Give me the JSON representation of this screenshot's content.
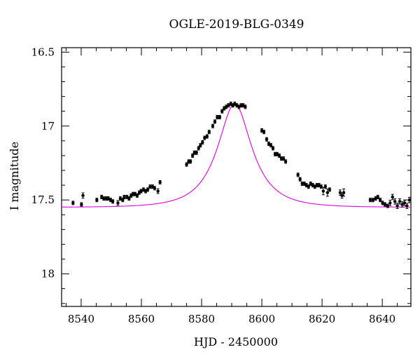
{
  "chart_data": {
    "type": "scatter",
    "title": "OGLE-2019-BLG-0349",
    "xlabel": "HJD - 2450000",
    "ylabel": "I magnitude",
    "xlim": [
      8533.5,
      8649.5
    ],
    "ylim": [
      18.22,
      16.47
    ],
    "y_inverted": true,
    "x_ticks": [
      8540,
      8560,
      8580,
      8600,
      8620,
      8640
    ],
    "x_tick_labels": [
      "8540",
      "8560",
      "8580",
      "8600",
      "8620",
      "8640"
    ],
    "y_ticks": [
      16.5,
      17,
      17.5,
      18
    ],
    "y_tick_labels": [
      "16.5",
      "17",
      "17.5",
      "18"
    ],
    "grid": false,
    "colors": {
      "points": "#000000",
      "model": "#e000e0"
    },
    "model": {
      "t0": 8591.0,
      "peak_mag": 16.85,
      "baseline_mag": 17.55,
      "tE": 11.5,
      "u0": 0.52
    },
    "series": [
      {
        "kind": "observations",
        "x": [
          8537.3,
          8540.1,
          8540.6,
          8545.2,
          8546.8,
          8547.5,
          8548.3,
          8549.0,
          8549.8,
          8550.5,
          8552.2,
          8553.0,
          8553.8,
          8554.3,
          8555.2,
          8555.9,
          8556.6,
          8557.2,
          8557.9,
          8558.6,
          8559.3,
          8559.9,
          8560.7,
          8561.4,
          8562.1,
          8562.9,
          8563.7,
          8564.4,
          8565.5,
          8566.2,
          8575.0,
          8575.7,
          8576.3,
          8577.0,
          8577.6,
          8578.3,
          8579.0,
          8579.6,
          8580.3,
          8581.0,
          8581.8,
          8582.5,
          8583.7,
          8584.4,
          8585.2,
          8586.0,
          8586.8,
          8587.5,
          8588.2,
          8588.9,
          8589.7,
          8590.4,
          8591.0,
          8591.7,
          8592.4,
          8593.1,
          8593.8,
          8594.5,
          8600.0,
          8600.7,
          8601.6,
          8602.3,
          8603.0,
          8603.7,
          8604.4,
          8605.1,
          8605.8,
          8606.5,
          8607.2,
          8607.9,
          8612.0,
          8612.7,
          8613.4,
          8614.1,
          8614.8,
          8615.5,
          8616.2,
          8616.9,
          8617.6,
          8618.3,
          8619.0,
          8619.7,
          8620.4,
          8621.1,
          8621.8,
          8622.5,
          8626.0,
          8626.6,
          8627.2,
          8636.0,
          8636.9,
          8637.8,
          8638.5,
          8639.3,
          8640.1,
          8640.9,
          8641.8,
          8642.6,
          8643.4,
          8644.2,
          8645.0,
          8645.8,
          8646.6,
          8647.4,
          8648.2,
          8649.0
        ],
        "y": [
          17.52,
          17.53,
          17.47,
          17.5,
          17.48,
          17.49,
          17.49,
          17.49,
          17.5,
          17.51,
          17.52,
          17.49,
          17.5,
          17.48,
          17.48,
          17.49,
          17.47,
          17.46,
          17.46,
          17.47,
          17.45,
          17.44,
          17.43,
          17.44,
          17.43,
          17.41,
          17.41,
          17.42,
          17.44,
          17.38,
          17.26,
          17.24,
          17.24,
          17.2,
          17.18,
          17.18,
          17.15,
          17.13,
          17.11,
          17.08,
          17.07,
          17.04,
          17.0,
          16.97,
          16.94,
          16.94,
          16.9,
          16.88,
          16.87,
          16.86,
          16.85,
          16.86,
          16.85,
          16.86,
          16.87,
          16.86,
          16.86,
          16.87,
          17.03,
          17.04,
          17.09,
          17.12,
          17.13,
          17.15,
          17.19,
          17.19,
          17.2,
          17.22,
          17.22,
          17.24,
          17.33,
          17.36,
          17.39,
          17.39,
          17.4,
          17.41,
          17.39,
          17.4,
          17.41,
          17.4,
          17.4,
          17.41,
          17.44,
          17.41,
          17.45,
          17.43,
          17.45,
          17.47,
          17.45,
          17.5,
          17.5,
          17.49,
          17.48,
          17.5,
          17.52,
          17.53,
          17.54,
          17.52,
          17.48,
          17.51,
          17.54,
          17.51,
          17.53,
          17.52,
          17.54,
          17.5
        ],
        "yerr": [
          0.012,
          0.012,
          0.018,
          0.012,
          0.012,
          0.012,
          0.012,
          0.012,
          0.012,
          0.012,
          0.016,
          0.012,
          0.012,
          0.012,
          0.012,
          0.012,
          0.012,
          0.012,
          0.012,
          0.012,
          0.012,
          0.012,
          0.012,
          0.012,
          0.012,
          0.012,
          0.012,
          0.012,
          0.016,
          0.012,
          0.012,
          0.012,
          0.012,
          0.012,
          0.012,
          0.012,
          0.012,
          0.012,
          0.012,
          0.012,
          0.012,
          0.012,
          0.012,
          0.012,
          0.012,
          0.012,
          0.012,
          0.012,
          0.012,
          0.012,
          0.012,
          0.012,
          0.012,
          0.012,
          0.012,
          0.012,
          0.012,
          0.012,
          0.012,
          0.012,
          0.012,
          0.012,
          0.012,
          0.012,
          0.012,
          0.012,
          0.012,
          0.012,
          0.012,
          0.012,
          0.012,
          0.012,
          0.012,
          0.012,
          0.012,
          0.012,
          0.012,
          0.012,
          0.012,
          0.012,
          0.012,
          0.012,
          0.025,
          0.012,
          0.025,
          0.012,
          0.018,
          0.018,
          0.025,
          0.012,
          0.012,
          0.012,
          0.012,
          0.012,
          0.012,
          0.012,
          0.012,
          0.018,
          0.018,
          0.018,
          0.018,
          0.018,
          0.018,
          0.018,
          0.018,
          0.018
        ]
      }
    ]
  }
}
